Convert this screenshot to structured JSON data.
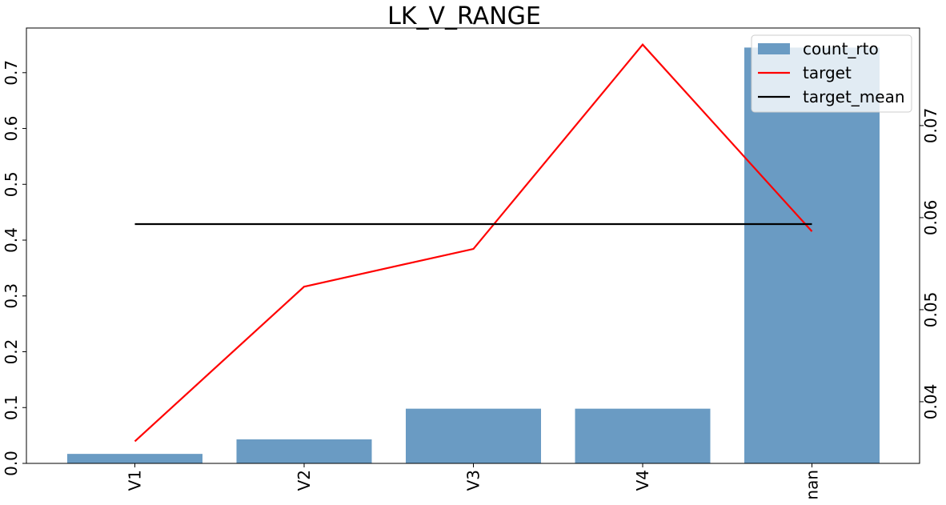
{
  "chart_data": {
    "type": "bar",
    "title": "LK_V_RANGE",
    "categories": [
      "V1",
      "V2",
      "V3",
      "V4",
      "nan"
    ],
    "series": [
      {
        "name": "count_rto",
        "kind": "bar",
        "axis": "left",
        "color": "#6a9bc3",
        "values": [
          0.017,
          0.043,
          0.098,
          0.098,
          0.745
        ]
      },
      {
        "name": "target",
        "kind": "line",
        "axis": "right",
        "color": "#ff0000",
        "values": [
          0.0357,
          0.0525,
          0.0566,
          0.0788,
          0.0585
        ]
      },
      {
        "name": "target_mean",
        "kind": "line",
        "axis": "right",
        "color": "#000000",
        "values": [
          0.0593,
          0.0593,
          0.0593,
          0.0593,
          0.0593
        ]
      }
    ],
    "left_axis": {
      "range": [
        0,
        0.78
      ],
      "ticks": [
        0.0,
        0.1,
        0.2,
        0.3,
        0.4,
        0.5,
        0.6,
        0.7
      ],
      "tick_labels": [
        "0.0",
        "0.1",
        "0.2",
        "0.3",
        "0.4",
        "0.5",
        "0.6",
        "0.7"
      ]
    },
    "right_axis": {
      "range": [
        0.0333,
        0.0806
      ],
      "ticks": [
        0.04,
        0.05,
        0.06,
        0.07
      ],
      "tick_labels": [
        "0.04",
        "0.05",
        "0.06",
        "0.07"
      ]
    },
    "legend": {
      "placement": "top-right"
    },
    "grid": false
  }
}
